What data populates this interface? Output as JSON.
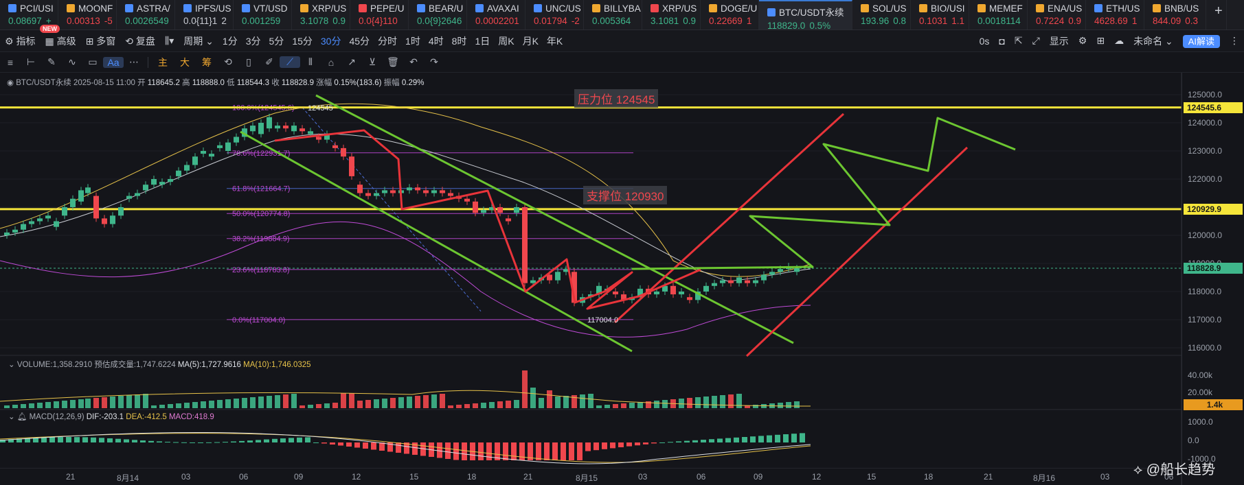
{
  "tickers": [
    {
      "name": "PCI/USI",
      "price": "0.08697",
      "change": "+",
      "dir": "up",
      "icon_color": "#4c8dff"
    },
    {
      "name": "MOONF",
      "price": "0.00313",
      "change": "-5",
      "dir": "down",
      "icon_color": "#f0a830"
    },
    {
      "name": "ASTRA/",
      "price": "0.0026549",
      "change": "",
      "dir": "up",
      "icon_color": "#4c8dff"
    },
    {
      "name": "IPFS/US",
      "price": "0.0{11}1",
      "change": "2",
      "dir": "neutral",
      "icon_color": "#4c8dff"
    },
    {
      "name": "VT/USD",
      "price": "0.001259",
      "change": "",
      "dir": "up",
      "icon_color": "#4c8dff"
    },
    {
      "name": "XRP/US",
      "price": "3.1078",
      "change": "0.9",
      "dir": "up",
      "icon_color": "#f0a830"
    },
    {
      "name": "PEPE/U",
      "price": "0.0{4}110",
      "change": "",
      "dir": "down",
      "icon_color": "#f0474d"
    },
    {
      "name": "BEAR/U",
      "price": "0.0{9}2646",
      "change": "",
      "dir": "up",
      "icon_color": "#4c8dff"
    },
    {
      "name": "AVAXAI",
      "price": "0.0002201",
      "change": "",
      "dir": "down",
      "icon_color": "#4c8dff"
    },
    {
      "name": "UNC/US",
      "price": "0.01794",
      "change": "-2",
      "dir": "down",
      "icon_color": "#4c8dff"
    },
    {
      "name": "BILLYBA",
      "price": "0.005364",
      "change": "",
      "dir": "up",
      "icon_color": "#f0a830"
    },
    {
      "name": "XRP/US",
      "price": "3.1081",
      "change": "0.9",
      "dir": "up",
      "icon_color": "#f0474d"
    },
    {
      "name": "DOGE/U",
      "price": "0.22669",
      "change": "1",
      "dir": "down",
      "icon_color": "#f0a830"
    },
    {
      "name": "BTC/USDT永续",
      "price": "118829.0",
      "change": "0.5%",
      "dir": "up",
      "icon_color": "#4c8dff",
      "active": true
    },
    {
      "name": "SOL/US",
      "price": "193.96",
      "change": "0.8",
      "dir": "up",
      "icon_color": "#f0a830"
    },
    {
      "name": "BIO/USI",
      "price": "0.1031",
      "change": "1.1",
      "dir": "down",
      "icon_color": "#f0a830"
    },
    {
      "name": "MEMEF",
      "price": "0.0018114",
      "change": "",
      "dir": "up",
      "icon_color": "#f0a830"
    },
    {
      "name": "ENA/US",
      "price": "0.7224",
      "change": "0.9",
      "dir": "down",
      "icon_color": "#f0a830"
    },
    {
      "name": "ETH/US",
      "price": "4628.69",
      "change": "1",
      "dir": "down",
      "icon_color": "#4c8dff"
    },
    {
      "name": "BNB/US",
      "price": "844.09",
      "change": "0.3",
      "dir": "down",
      "icon_color": "#f0a830"
    }
  ],
  "add_tab_label": "+",
  "toolbar": {
    "indicators": "指标",
    "new_badge": "NEW",
    "advanced": "高级",
    "multi_window": "多窗",
    "replay": "复盘",
    "period": "周期",
    "periods": [
      "1分",
      "3分",
      "5分",
      "15分",
      "30分",
      "45分",
      "分时",
      "1时",
      "4时",
      "8时",
      "1日",
      "周K",
      "月K",
      "年K"
    ],
    "selected_period": "30分",
    "seconds": "0s",
    "display": "显示",
    "unnamed": "未命名",
    "ai": "AI解读"
  },
  "drawing_tools": [
    "≡",
    "⊢",
    "✎",
    "∿",
    "▭",
    "Aa",
    "⋯"
  ],
  "drawing_text_tools": [
    "主",
    "大",
    "筹"
  ],
  "drawing_tools2": [
    "⟲",
    "▯",
    "✐",
    "⟋",
    "⫴",
    "⌂",
    "↗",
    "⊻",
    "🗑",
    "↶",
    "↷"
  ],
  "info": {
    "symbol": "BTC/USDT永续",
    "datetime": "2025-08-15 11:00",
    "open_label": "开",
    "open": "118645.2",
    "high_label": "高",
    "high": "118888.0",
    "low_label": "低",
    "low": "118544.3",
    "close_label": "收",
    "close": "118828.9",
    "change_label": "涨幅",
    "change": "0.15%(183.6)",
    "amp_label": "振幅",
    "amp": "0.29%"
  },
  "volume_info": {
    "label": "VOLUME:1,358.2910",
    "est": "预估成交量:1,747.6224",
    "ma5": "MA(5):1,727.9616",
    "ma10": "MA(10):1,746.0325"
  },
  "macd_info": {
    "label": "MACD(12,26,9)",
    "dif": "DIF:-203.1",
    "dea": "DEA:-412.5",
    "macd": "MACD:418.9"
  },
  "annotations": {
    "resistance": "压力位 124545",
    "support": "支撑位 120930",
    "high_mark": "124545",
    "low_mark": "117004.0"
  },
  "fib_levels": [
    {
      "label": "100.0%(124545.6)",
      "price": 124545.6
    },
    {
      "label": "78.6%(122931.7)",
      "price": 122931.7
    },
    {
      "label": "61.8%(121664.7)",
      "price": 121664.7
    },
    {
      "label": "50.0%(120774.8)",
      "price": 120774.8
    },
    {
      "label": "38.2%(119884.9)",
      "price": 119884.9
    },
    {
      "label": "23.6%(118783.8)",
      "price": 118783.8
    },
    {
      "label": "0.0%(117004.0)",
      "price": 117004.0
    }
  ],
  "price_scale": {
    "labels": [
      "125000.0",
      "124000.0",
      "123000.0",
      "122000.0",
      "121000.0",
      "120000.0",
      "119000.0",
      "118000.0",
      "117000.0",
      "116000.0"
    ],
    "tag_resistance": "124545.6",
    "tag_support": "120929.9",
    "tag_current": "118828.9",
    "vol_labels": [
      "40.00k",
      "20.00k"
    ],
    "vol_tag": "1.4k",
    "macd_labels": [
      "1000.0",
      "0.0",
      "-1000.0"
    ]
  },
  "time_axis": [
    "21",
    "8月14",
    "03",
    "06",
    "09",
    "12",
    "15",
    "18",
    "21",
    "8月15",
    "03",
    "06",
    "09",
    "12",
    "15",
    "18",
    "21",
    "8月16",
    "03",
    "06"
  ],
  "watermark": "@船长趋势",
  "colors": {
    "up": "#3fb68b",
    "down": "#f0474d",
    "accent": "#4c8dff",
    "level_line": "#f5e53a",
    "channel_green": "#6cc631",
    "path_red": "#e8343a",
    "fib": "#c04bd8"
  }
}
